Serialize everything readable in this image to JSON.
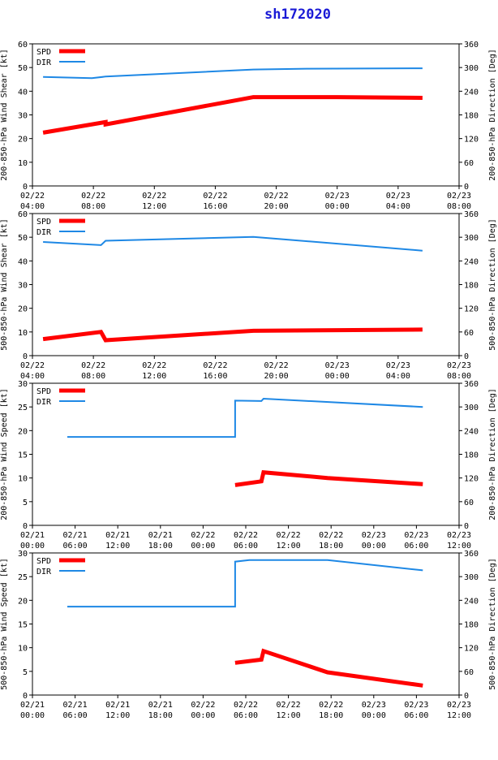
{
  "title": "sh172020",
  "colors": {
    "spd": "#ff0000",
    "dir": "#1e88e5",
    "title": "#1a1ad6"
  },
  "chart_data": [
    {
      "type": "line",
      "ylabel": "200-850-hPa Wind Shear [kt]",
      "y2label": "200-850-hPa Direction [Deg]",
      "ylim": [
        0,
        60
      ],
      "yticks": [
        0,
        10,
        20,
        30,
        40,
        50,
        60
      ],
      "y2lim": [
        0,
        360
      ],
      "y2ticks": [
        0,
        60,
        120,
        180,
        240,
        300,
        360
      ],
      "xlim": [
        0,
        28
      ],
      "xticks": [
        0,
        4,
        8,
        12,
        16,
        20,
        24,
        28
      ],
      "xtick_labels": [
        [
          "02/22",
          "04:00"
        ],
        [
          "02/22",
          "08:00"
        ],
        [
          "02/22",
          "12:00"
        ],
        [
          "02/22",
          "16:00"
        ],
        [
          "02/22",
          "20:00"
        ],
        [
          "02/23",
          "00:00"
        ],
        [
          "02/23",
          "04:00"
        ],
        [
          "02/23",
          "08:00"
        ]
      ],
      "legend": {
        "placement": "top-left",
        "entries": [
          "SPD",
          "DIR"
        ]
      },
      "series": [
        {
          "name": "SPD",
          "axis": "left",
          "x": [
            0.7,
            4.8,
            4.8,
            14.5,
            20.0,
            25.6
          ],
          "y": [
            22.5,
            27,
            26,
            37.5,
            37.5,
            37.2
          ]
        },
        {
          "name": "DIR",
          "axis": "right",
          "x": [
            0.7,
            3.9,
            4.8,
            14.5,
            18.0,
            25.6
          ],
          "y": [
            276,
            273,
            277,
            295,
            297,
            298
          ]
        }
      ]
    },
    {
      "type": "line",
      "ylabel": "500-850-hPa Wind Shear [kt]",
      "y2label": "500-850-hPa Direction [Deg]",
      "ylim": [
        0,
        60
      ],
      "yticks": [
        0,
        10,
        20,
        30,
        40,
        50,
        60
      ],
      "y2lim": [
        0,
        360
      ],
      "y2ticks": [
        0,
        60,
        120,
        180,
        240,
        300,
        360
      ],
      "xlim": [
        0,
        28
      ],
      "xticks": [
        0,
        4,
        8,
        12,
        16,
        20,
        24,
        28
      ],
      "xtick_labels": [
        [
          "02/22",
          "04:00"
        ],
        [
          "02/22",
          "08:00"
        ],
        [
          "02/22",
          "12:00"
        ],
        [
          "02/22",
          "16:00"
        ],
        [
          "02/22",
          "20:00"
        ],
        [
          "02/23",
          "00:00"
        ],
        [
          "02/23",
          "04:00"
        ],
        [
          "02/23",
          "08:00"
        ]
      ],
      "legend": {
        "placement": "top-left",
        "entries": [
          "SPD",
          "DIR"
        ]
      },
      "series": [
        {
          "name": "SPD",
          "axis": "left",
          "x": [
            0.7,
            4.5,
            4.8,
            14.5,
            25.6
          ],
          "y": [
            7,
            10,
            6.5,
            10.5,
            11
          ]
        },
        {
          "name": "DIR",
          "axis": "right",
          "x": [
            0.7,
            4.5,
            4.8,
            14.5,
            25.6
          ],
          "y": [
            288,
            280,
            291,
            301,
            266
          ]
        }
      ]
    },
    {
      "type": "line",
      "ylabel": "200-850-hPa Wind Speed [kt]",
      "y2label": "200-850-hPa Direction [Deg]",
      "ylim": [
        0,
        30
      ],
      "yticks": [
        0,
        5,
        10,
        15,
        20,
        25,
        30
      ],
      "y2lim": [
        0,
        360
      ],
      "y2ticks": [
        0,
        60,
        120,
        180,
        240,
        300,
        360
      ],
      "xlim": [
        0,
        60
      ],
      "xticks": [
        0,
        6,
        12,
        18,
        24,
        30,
        36,
        42,
        48,
        54,
        60
      ],
      "xtick_labels": [
        [
          "02/21",
          "00:00"
        ],
        [
          "02/21",
          "06:00"
        ],
        [
          "02/21",
          "12:00"
        ],
        [
          "02/21",
          "18:00"
        ],
        [
          "02/22",
          "00:00"
        ],
        [
          "02/22",
          "06:00"
        ],
        [
          "02/22",
          "12:00"
        ],
        [
          "02/22",
          "18:00"
        ],
        [
          "02/23",
          "00:00"
        ],
        [
          "02/23",
          "06:00"
        ],
        [
          "02/23",
          "12:00"
        ]
      ],
      "legend": {
        "placement": "top-left",
        "entries": [
          "SPD",
          "DIR"
        ]
      },
      "series": [
        {
          "name": "SPD",
          "axis": "left",
          "x": [
            28.5,
            32.2,
            32.5,
            41.5,
            54.9
          ],
          "y": [
            8.5,
            9.3,
            11.2,
            10,
            8.7
          ]
        },
        {
          "name": "DIR",
          "axis": "right",
          "x": [
            4.9,
            28.5,
            28.5,
            32.2,
            32.5,
            54.9
          ],
          "y": [
            224,
            224,
            316,
            315,
            321,
            300
          ]
        }
      ]
    },
    {
      "type": "line",
      "ylabel": "500-850-hPa Wind Speed [kt]",
      "y2label": "500-850-hPa Direction [Deg]",
      "ylim": [
        0,
        30
      ],
      "yticks": [
        0,
        5,
        10,
        15,
        20,
        25,
        30
      ],
      "y2lim": [
        0,
        360
      ],
      "y2ticks": [
        0,
        60,
        120,
        180,
        240,
        300,
        360
      ],
      "xlim": [
        0,
        60
      ],
      "xticks": [
        0,
        6,
        12,
        18,
        24,
        30,
        36,
        42,
        48,
        54,
        60
      ],
      "xtick_labels": [
        [
          "02/21",
          "00:00"
        ],
        [
          "02/21",
          "06:00"
        ],
        [
          "02/21",
          "12:00"
        ],
        [
          "02/21",
          "18:00"
        ],
        [
          "02/22",
          "00:00"
        ],
        [
          "02/22",
          "06:00"
        ],
        [
          "02/22",
          "12:00"
        ],
        [
          "02/22",
          "18:00"
        ],
        [
          "02/23",
          "00:00"
        ],
        [
          "02/23",
          "06:00"
        ],
        [
          "02/23",
          "12:00"
        ]
      ],
      "legend": {
        "placement": "top-left",
        "entries": [
          "SPD",
          "DIR"
        ]
      },
      "series": [
        {
          "name": "SPD",
          "axis": "left",
          "x": [
            28.5,
            32.2,
            32.5,
            41.5,
            54.9
          ],
          "y": [
            6.8,
            7.5,
            9.3,
            4.8,
            2
          ]
        },
        {
          "name": "DIR",
          "axis": "right",
          "x": [
            4.9,
            28.5,
            28.5,
            30.5,
            41.5,
            54.9
          ],
          "y": [
            224,
            224,
            338,
            342,
            342,
            316
          ]
        }
      ]
    }
  ]
}
